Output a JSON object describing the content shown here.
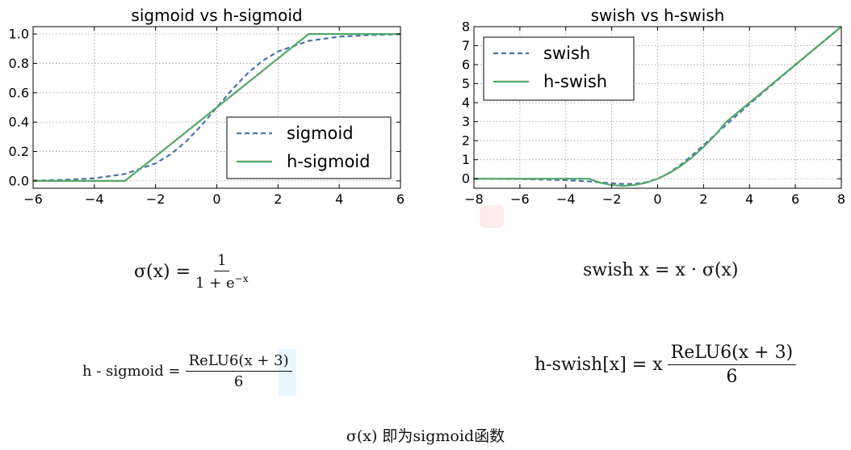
{
  "chart_data": [
    {
      "type": "line",
      "title": "sigmoid vs h-sigmoid",
      "xlim": [
        -6,
        6
      ],
      "ylim": [
        -0.05,
        1.05
      ],
      "xticks": [
        -6,
        -4,
        -2,
        0,
        2,
        4,
        6
      ],
      "yticks": [
        0.0,
        0.2,
        0.4,
        0.6,
        0.8,
        1.0
      ],
      "xtick_labels": [
        "−6",
        "−4",
        "−2",
        "0",
        "2",
        "4",
        "6"
      ],
      "ytick_labels": [
        "0.0",
        "0.2",
        "0.4",
        "0.6",
        "0.8",
        "1.0"
      ],
      "grid": true,
      "legend_position": "lower-right",
      "series": [
        {
          "name": "sigmoid",
          "style": "dashed",
          "color": "#4c72b0",
          "x": [
            -6,
            -5,
            -4,
            -3,
            -2,
            -1.5,
            -1,
            -0.5,
            0,
            0.5,
            1,
            1.5,
            2,
            3,
            4,
            5,
            6
          ],
          "y": [
            0.002,
            0.007,
            0.018,
            0.047,
            0.119,
            0.182,
            0.269,
            0.378,
            0.5,
            0.622,
            0.731,
            0.818,
            0.881,
            0.953,
            0.982,
            0.993,
            0.998
          ]
        },
        {
          "name": "h-sigmoid",
          "style": "solid",
          "color": "#55a868",
          "x": [
            -6,
            -3,
            3,
            6
          ],
          "y": [
            0,
            0,
            1,
            1
          ]
        }
      ]
    },
    {
      "type": "line",
      "title": "swish vs h-swish",
      "xlim": [
        -8,
        8
      ],
      "ylim": [
        -0.5,
        8
      ],
      "xticks": [
        -8,
        -6,
        -4,
        -2,
        0,
        2,
        4,
        6,
        8
      ],
      "yticks": [
        0,
        1,
        2,
        3,
        4,
        5,
        6,
        7,
        8
      ],
      "xtick_labels": [
        "−8",
        "−6",
        "−4",
        "−2",
        "0",
        "2",
        "4",
        "6",
        "8"
      ],
      "ytick_labels": [
        "0",
        "1",
        "2",
        "3",
        "4",
        "5",
        "6",
        "7",
        "8"
      ],
      "grid": true,
      "legend_position": "top-left",
      "series": [
        {
          "name": "swish",
          "style": "dashed",
          "color": "#4c72b0",
          "x": [
            -8,
            -6,
            -4,
            -3,
            -2,
            -1.5,
            -1,
            -0.5,
            0,
            0.5,
            1,
            1.5,
            2,
            3,
            4,
            5,
            6,
            7,
            8
          ],
          "y": [
            -0.003,
            -0.015,
            -0.072,
            -0.142,
            -0.238,
            -0.273,
            -0.269,
            -0.189,
            0,
            0.311,
            0.731,
            1.227,
            1.762,
            2.858,
            3.928,
            4.967,
            5.985,
            6.994,
            7.997
          ]
        },
        {
          "name": "h-swish",
          "style": "solid",
          "color": "#55a868",
          "x": [
            -8,
            -3,
            -2.5,
            -2,
            -1.5,
            -1,
            -0.5,
            0,
            0.5,
            1,
            1.5,
            2,
            2.5,
            3,
            8
          ],
          "y": [
            0,
            0,
            -0.208,
            -0.333,
            -0.375,
            -0.333,
            -0.208,
            0,
            0.292,
            0.667,
            1.125,
            1.667,
            2.292,
            3,
            8
          ]
        }
      ]
    }
  ],
  "formulas": {
    "sigma_lhs": "σ(x) =",
    "sigma_num": "1",
    "sigma_den_base": "1 + e",
    "sigma_den_exp": "−x",
    "swish": "swish x = x · σ(x)",
    "hsig_lhs": "h - sigmoid =",
    "hsig_num": "ReLU6(x + 3)",
    "hsig_den": "6",
    "hswish_lhs": "h-swish[x] = x",
    "hswish_num": "ReLU6(x + 3)",
    "hswish_den": "6"
  },
  "caption": "σ(x) 即为sigmoid函数"
}
